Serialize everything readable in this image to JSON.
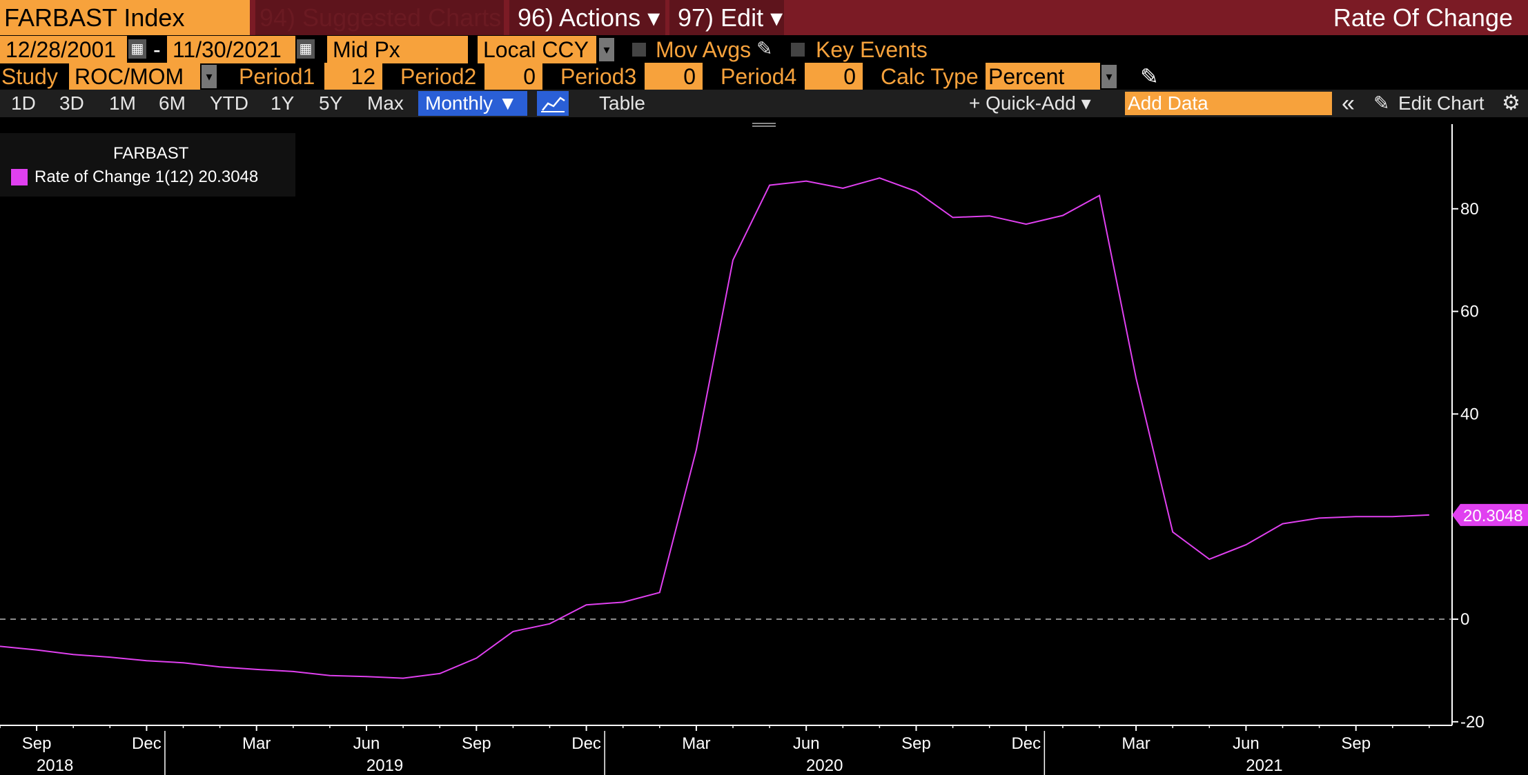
{
  "toolbar": {
    "ticker": "FARBAST Index",
    "suggested": "94) Suggested Charts",
    "actions": "96) Actions ▾",
    "edit": "97) Edit ▾",
    "title": "Rate Of Change"
  },
  "controls": {
    "start_date": "12/28/2001",
    "dash": "-",
    "end_date": "11/30/2021",
    "price_field": "Mid Px",
    "currency": "Local CCY",
    "mov_avgs": "Mov Avgs",
    "key_events": "Key Events"
  },
  "study": {
    "label": "Study",
    "value": "ROC/MOM",
    "period1_label": "Period1",
    "period1": "12",
    "period2_label": "Period2",
    "period2": "0",
    "period3_label": "Period3",
    "period3": "0",
    "period4_label": "Period4",
    "period4": "0",
    "calc_label": "Calc Type",
    "calc_value": "Percent"
  },
  "range_bar": {
    "buttons": [
      "1D",
      "3D",
      "1M",
      "6M",
      "YTD",
      "1Y",
      "5Y",
      "Max"
    ],
    "frequency": "Monthly ▼",
    "table": "Table",
    "quick_add": "+ Quick-Add ▾",
    "add_data_placeholder": "Add Data",
    "collapse": "«",
    "edit_chart": "Edit Chart"
  },
  "legend": {
    "title": "FARBAST",
    "series": "Rate of Change 1(12) 20.3048"
  },
  "colors": {
    "line": "#e040f0",
    "accent": "#f7a23c",
    "header": "#7b1b25",
    "selected": "#2a5fd6"
  },
  "chart_data": {
    "type": "line",
    "frequency": "monthly",
    "x": [
      "2018-08",
      "2018-09",
      "2018-10",
      "2018-11",
      "2018-12",
      "2019-01",
      "2019-02",
      "2019-03",
      "2019-04",
      "2019-05",
      "2019-06",
      "2019-07",
      "2019-08",
      "2019-09",
      "2019-10",
      "2019-11",
      "2019-12",
      "2020-01",
      "2020-02",
      "2020-03",
      "2020-04",
      "2020-05",
      "2020-06",
      "2020-07",
      "2020-08",
      "2020-09",
      "2020-10",
      "2020-11",
      "2020-12",
      "2021-01",
      "2021-02",
      "2021-03",
      "2021-04",
      "2021-05",
      "2021-06",
      "2021-07",
      "2021-08",
      "2021-09",
      "2021-10",
      "2021-11"
    ],
    "series": [
      {
        "name": "Rate of Change 1(12)",
        "values": [
          -5.3,
          -6.0,
          -6.9,
          -7.4,
          -8.1,
          -8.5,
          -9.3,
          -9.8,
          -10.2,
          -11.0,
          -11.2,
          -11.5,
          -10.6,
          -7.6,
          -2.4,
          -0.9,
          2.8,
          3.3,
          5.2,
          33.0,
          70.0,
          84.6,
          85.4,
          84.0,
          86.0,
          83.4,
          78.3,
          78.6,
          77.0,
          78.7,
          82.6,
          47.0,
          17.0,
          11.7,
          14.5,
          18.6,
          19.7,
          20.0,
          20.0,
          20.3048
        ]
      }
    ],
    "last_value_label": "20.3048",
    "ylim": [
      -20,
      95
    ],
    "yticks": [
      80,
      60,
      40,
      0,
      -20
    ],
    "x_month_labels": [
      "Sep",
      "Dec",
      "Mar",
      "Jun",
      "Sep",
      "Dec",
      "Mar",
      "Jun",
      "Sep",
      "Dec",
      "Mar",
      "Jun",
      "Sep"
    ],
    "x_year_labels": [
      "2018",
      "2019",
      "2020",
      "2021"
    ],
    "zero_line": "dashed"
  }
}
